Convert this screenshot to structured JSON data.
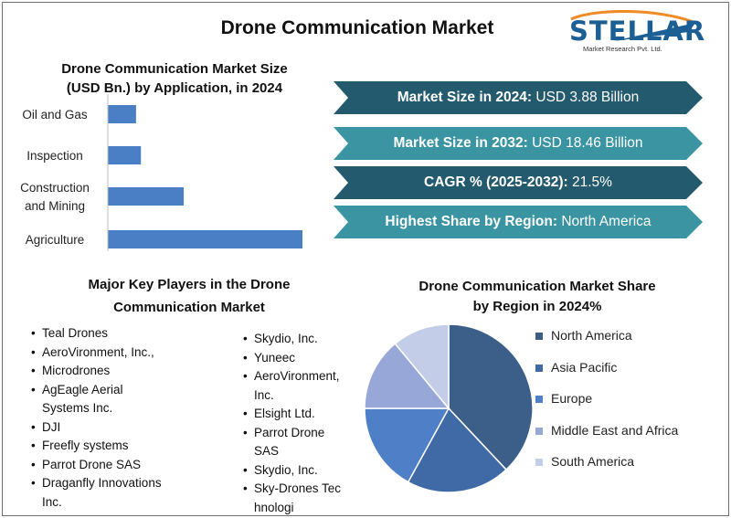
{
  "title": "Drone Communication Market",
  "logo": {
    "brand": "STELLAR",
    "tagline": "Market Research Pvt. Ltd."
  },
  "bar_section": {
    "title_line1": "Drone Communication Market Size",
    "title_line2": "(USD Bn.) by Application, in 2024"
  },
  "banners": [
    {
      "label": "Market Size in 2024:",
      "value": " USD 3.88 Billion",
      "color": "#245a6d"
    },
    {
      "label": "Market Size in 2032:",
      "value": " USD 18.46 Billion",
      "color": "#3a94a2"
    },
    {
      "label": "CAGR % (2025-2032):",
      "value": " 21.5%",
      "color": "#245a6d"
    },
    {
      "label": "Highest Share by Region:",
      "value": " North America",
      "color": "#3a94a2"
    }
  ],
  "players": {
    "title_line1": "Major Key Players in the Drone",
    "title_line2": "Communication Market",
    "left": [
      "Teal Drones",
      "AeroVironment, Inc.,",
      "Microdrones",
      "AgEagle Aerial Systems Inc.",
      "DJI",
      "Freefly systems",
      "Parrot Drone SAS",
      "Draganfly Innovations Inc."
    ],
    "right": [
      "Skydio, Inc.",
      "Yuneec",
      "AeroVironment, Inc.",
      "Elsight Ltd.",
      "Parrot Drone SAS",
      "Skydio, Inc.",
      "Sky-Drones Technologi"
    ]
  },
  "pie_section": {
    "title_line1": "Drone Communication Market Share",
    "title_line2": "by Region in 2024%"
  },
  "chart_data": [
    {
      "type": "bar",
      "orientation": "horizontal",
      "title": "Drone Communication Market Size (USD Bn.) by Application, in 2024",
      "categories": [
        "Oil and Gas",
        "Inspection",
        "Construction and Mining",
        "Agriculture"
      ],
      "category_lines": [
        [
          "Oil and Gas"
        ],
        [
          "Inspection"
        ],
        [
          "Construction",
          "and Mining"
        ],
        [
          "Agriculture"
        ]
      ],
      "values": [
        0.29,
        0.34,
        0.78,
        2.0
      ],
      "xlim": [
        0,
        2.0
      ],
      "bar_color": "#4a7fc6",
      "grid": false
    },
    {
      "type": "pie",
      "title": "Drone Communication Market Share by Region in 2024%",
      "labels": [
        "North America",
        "Asia Pacific",
        "Europe",
        "Middle East and Africa",
        "South America"
      ],
      "values": [
        38,
        20,
        17,
        14,
        11
      ],
      "colors": [
        "#3c5f8a",
        "#3f6aa6",
        "#4e7fc7",
        "#97a8d8",
        "#c3cde8"
      ],
      "legend": "right"
    }
  ]
}
